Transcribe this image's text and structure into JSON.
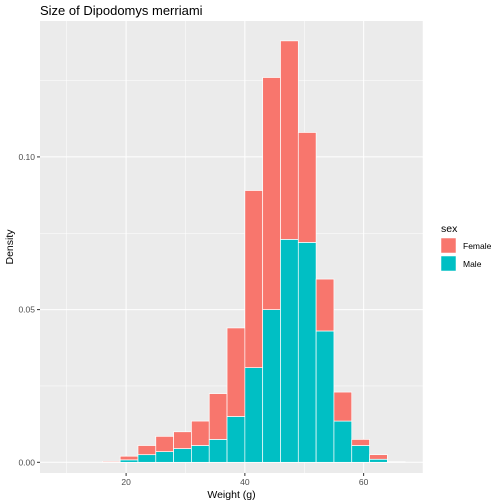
{
  "chart_data": {
    "type": "bar",
    "title": "Size of Dipodomys merriami",
    "xlabel": "Weight (g)",
    "ylabel": "Density",
    "xlim": [
      5.5,
      70
    ],
    "ylim": [
      -0.0035,
      0.1445
    ],
    "x_ticks": [
      20,
      40,
      60
    ],
    "y_ticks": [
      0.0,
      0.05,
      0.1
    ],
    "y_tick_labels": [
      "0.00",
      "0.05",
      "0.10"
    ],
    "bin_width": 3,
    "bin_starts": [
      7,
      10,
      13,
      16,
      19,
      22,
      25,
      28,
      31,
      34,
      37,
      40,
      43,
      46,
      49,
      52,
      55,
      58,
      61,
      64,
      67
    ],
    "stacking": "stacked",
    "grid": true,
    "legend_position": "right",
    "legend": {
      "title": "sex",
      "entries": [
        {
          "key": "Female",
          "label": "Female",
          "color": "#F8766D"
        },
        {
          "key": "Male",
          "label": "Male",
          "color": "#00BFC4"
        }
      ]
    },
    "series": [
      {
        "name": "Male",
        "color": "#00BFC4",
        "values": [
          0,
          0,
          0,
          0,
          0.0008,
          0.0025,
          0.0035,
          0.0045,
          0.0055,
          0.0075,
          0.015,
          0.031,
          0.05,
          0.073,
          0.072,
          0.043,
          0.0135,
          0.0055,
          0.001,
          0,
          0
        ]
      },
      {
        "name": "Female",
        "color": "#F8766D",
        "values": [
          0,
          0,
          0,
          0.0003,
          0.0012,
          0.003,
          0.005,
          0.0055,
          0.008,
          0.015,
          0.029,
          0.058,
          0.076,
          0.065,
          0.036,
          0.017,
          0.0095,
          0.002,
          0.0015,
          0.0002,
          0
        ]
      }
    ]
  }
}
